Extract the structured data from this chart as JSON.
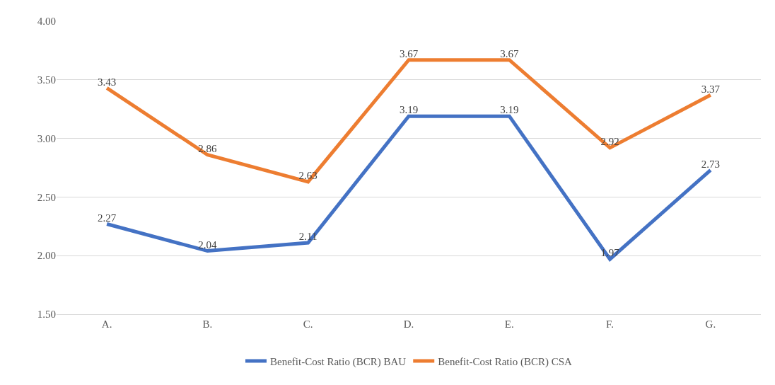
{
  "chart_data": {
    "type": "line",
    "categories": [
      "A.",
      "B.",
      "C.",
      "D.",
      "E.",
      "F.",
      "G."
    ],
    "series": [
      {
        "name": "Benefit-Cost Ratio (BCR) BAU",
        "color": "#4472c4",
        "values": [
          2.27,
          2.04,
          2.11,
          3.19,
          3.19,
          1.97,
          2.73
        ]
      },
      {
        "name": "Benefit-Cost Ratio (BCR) CSA",
        "color": "#ed7d31",
        "values": [
          3.43,
          2.86,
          2.63,
          3.67,
          3.67,
          2.92,
          3.37
        ]
      }
    ],
    "ylim": [
      1.5,
      4.0
    ],
    "yticks": [
      {
        "value": 1.5,
        "label": "1.50"
      },
      {
        "value": 2.0,
        "label": "2.00"
      },
      {
        "value": 2.5,
        "label": "2.50"
      },
      {
        "value": 3.0,
        "label": "3.00"
      },
      {
        "value": 3.5,
        "label": "3.50"
      },
      {
        "value": 4.0,
        "label": "4.00"
      }
    ],
    "grid": "y",
    "legend": "bottom",
    "data_labels": true,
    "marker": "none",
    "line_style": "solid"
  }
}
